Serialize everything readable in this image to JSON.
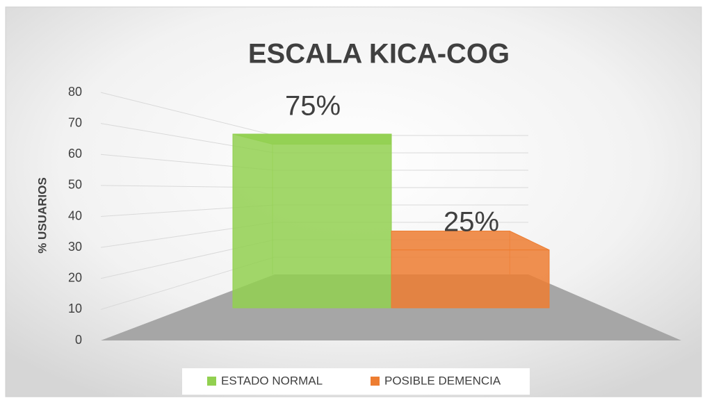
{
  "chart_data": {
    "type": "bar3d",
    "title": "ESCALA KICA-COG",
    "ylabel": "% USUARIOS",
    "series": [
      {
        "name": "ESTADO NORMAL",
        "color": "#92d050",
        "values": [
          75
        ],
        "value_labels": [
          "75%"
        ]
      },
      {
        "name": "POSIBLE DEMENCIA",
        "color": "#ed7d31",
        "values": [
          25
        ],
        "value_labels": [
          "25%"
        ]
      }
    ],
    "ylim": [
      0,
      80
    ],
    "yticks": [
      0,
      10,
      20,
      30,
      40,
      50,
      60,
      70,
      80
    ],
    "grid": true,
    "legend": "bottom"
  }
}
